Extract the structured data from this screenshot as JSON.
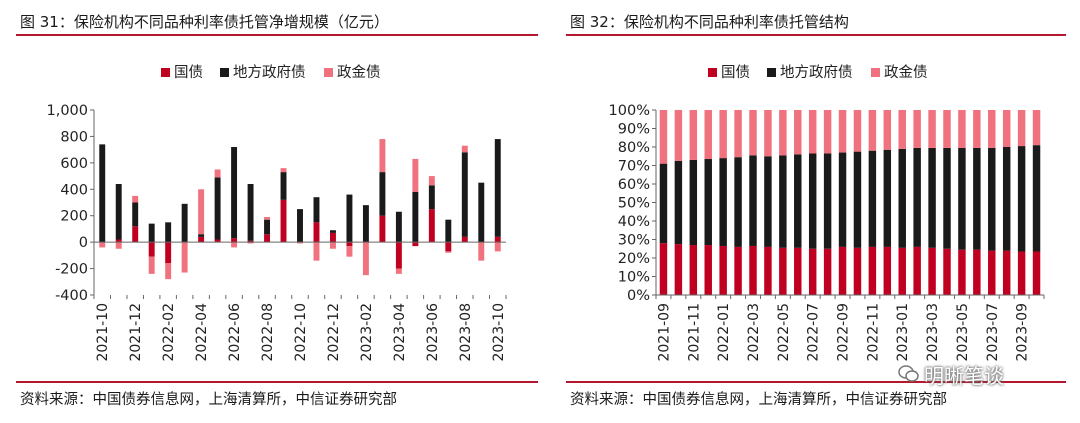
{
  "colors": {
    "guozhai": "#c00020",
    "difang": "#1a1a1a",
    "zhengjin": "#f0727e",
    "rule": "#b3182e"
  },
  "left": {
    "title": "图 31：保险机构不同品种利率债托管净增规模（亿元）",
    "source": "资料来源：中国债券信息网，上海清算所，中信证券研究部"
  },
  "right": {
    "title": "图 32：保险机构不同品种利率债托管结构",
    "source": "资料来源：中国债券信息网，上海清算所，中信证券研究部"
  },
  "watermark": {
    "icon": "wechat-icon",
    "text": "明晰笔谈"
  },
  "chart_data": [
    {
      "type": "bar",
      "stacked": true,
      "ylim": [
        -400,
        1000
      ],
      "yticks": [
        -400,
        -200,
        0,
        200,
        400,
        600,
        800,
        1000
      ],
      "ytick_labels": [
        "-400",
        "-200",
        "0",
        "200",
        "400",
        "600",
        "800",
        "1,000"
      ],
      "legend_position": "top-center",
      "categories": [
        "2021-10",
        "2021-11",
        "2021-12",
        "2022-01",
        "2022-02",
        "2022-03",
        "2022-04",
        "2022-05",
        "2022-06",
        "2022-07",
        "2022-08",
        "2022-09",
        "2022-10",
        "2022-11",
        "2022-12",
        "2023-01",
        "2023-02",
        "2023-03",
        "2023-04",
        "2023-05",
        "2023-06",
        "2023-07",
        "2023-08",
        "2023-09",
        "2023-10"
      ],
      "xtick_labels": [
        "2021-10",
        "",
        "2021-12",
        "",
        "2022-02",
        "",
        "2022-04",
        "",
        "2022-06",
        "",
        "2022-08",
        "",
        "2022-10",
        "",
        "2022-12",
        "",
        "2023-02",
        "",
        "2023-04",
        "",
        "2023-06",
        "",
        "2023-08",
        "",
        "2023-10"
      ],
      "series": [
        {
          "name": "国债",
          "color_key": "guozhai",
          "values": [
            0,
            20,
            120,
            -110,
            -160,
            0,
            40,
            20,
            30,
            10,
            60,
            320,
            0,
            150,
            70,
            -30,
            0,
            200,
            -200,
            -30,
            250,
            -70,
            40,
            0,
            40
          ]
        },
        {
          "name": "地方政府债",
          "color_key": "difang",
          "values": [
            740,
            420,
            180,
            140,
            150,
            290,
            20,
            470,
            690,
            430,
            110,
            210,
            250,
            190,
            20,
            360,
            280,
            330,
            230,
            380,
            180,
            170,
            640,
            450,
            740
          ]
        },
        {
          "name": "政金债",
          "color_key": "zhengjin",
          "values": [
            -40,
            -50,
            50,
            -130,
            -120,
            -230,
            340,
            60,
            -40,
            -10,
            20,
            30,
            -10,
            -140,
            -50,
            -80,
            -250,
            250,
            -40,
            250,
            70,
            -10,
            50,
            -140,
            -70
          ]
        }
      ]
    },
    {
      "type": "bar",
      "stacked": true,
      "percent": true,
      "ylim": [
        0,
        100
      ],
      "yticks": [
        0,
        10,
        20,
        30,
        40,
        50,
        60,
        70,
        80,
        90,
        100
      ],
      "ytick_labels": [
        "0%",
        "10%",
        "20%",
        "30%",
        "40%",
        "50%",
        "60%",
        "70%",
        "80%",
        "90%",
        "100%"
      ],
      "legend_position": "top-center",
      "categories": [
        "2021-09",
        "2021-10",
        "2021-11",
        "2021-12",
        "2022-01",
        "2022-02",
        "2022-03",
        "2022-04",
        "2022-05",
        "2022-06",
        "2022-07",
        "2022-08",
        "2022-09",
        "2022-10",
        "2022-11",
        "2022-12",
        "2023-01",
        "2023-02",
        "2023-03",
        "2023-04",
        "2023-05",
        "2023-06",
        "2023-07",
        "2023-08",
        "2023-09",
        "2023-10"
      ],
      "xtick_labels": [
        "2021-09",
        "",
        "2021-11",
        "",
        "2022-01",
        "",
        "2022-03",
        "",
        "2022-05",
        "",
        "2022-07",
        "",
        "2022-09",
        "",
        "2022-11",
        "",
        "2023-01",
        "",
        "2023-03",
        "",
        "2023-05",
        "",
        "2023-07",
        "",
        "2023-09",
        ""
      ],
      "series": [
        {
          "name": "国债",
          "color_key": "guozhai",
          "values": [
            28,
            27.5,
            27,
            27,
            26.5,
            26,
            26.5,
            26,
            25.5,
            25.5,
            25,
            25,
            26,
            25.5,
            26,
            26,
            25.5,
            26,
            25.5,
            25,
            24.5,
            24.5,
            24,
            24,
            23.5,
            23.5
          ]
        },
        {
          "name": "地方政府债",
          "color_key": "difang",
          "values": [
            43,
            45,
            46,
            46.5,
            47.5,
            48.5,
            49,
            49,
            50,
            50.5,
            51.5,
            51.5,
            51,
            52,
            52,
            52.5,
            53.5,
            53.5,
            54,
            54.5,
            55,
            55,
            55.5,
            56,
            57,
            57.5
          ]
        },
        {
          "name": "政金债",
          "color_key": "zhengjin",
          "values": [
            29,
            27.5,
            27,
            26.5,
            26,
            25.5,
            24.5,
            25,
            24.5,
            24,
            23.5,
            23.5,
            23,
            22.5,
            22,
            21.5,
            21,
            20.5,
            20.5,
            20.5,
            20.5,
            20.5,
            20.5,
            20,
            19.5,
            19
          ]
        }
      ]
    }
  ]
}
